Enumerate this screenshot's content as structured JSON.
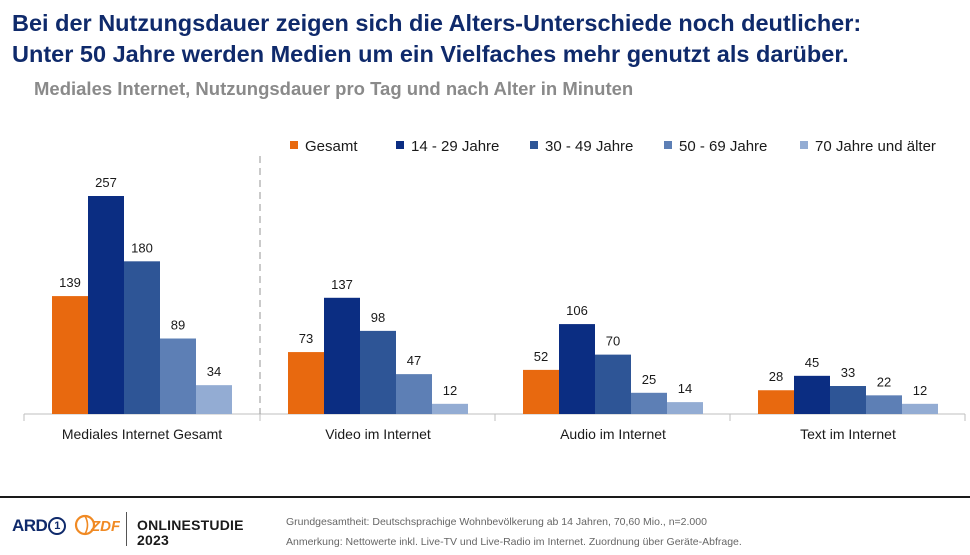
{
  "headline": {
    "line1": "Bei der Nutzungsdauer zeigen sich die Alters-Unterschiede noch deutlicher:",
    "line2": "Unter 50 Jahre werden Medien um ein Vielfaches mehr genutzt als darüber."
  },
  "subtitle": "Mediales Internet, Nutzungsdauer pro Tag und nach Alter in Minuten",
  "chart_data": {
    "type": "bar",
    "title": "Mediales Internet, Nutzungsdauer pro Tag und nach Alter in Minuten",
    "categories": [
      "Mediales Internet Gesamt",
      "Video im Internet",
      "Audio im Internet",
      "Text im Internet"
    ],
    "series": [
      {
        "name": "Gesamt",
        "color": "#e8690f",
        "values": [
          139,
          73,
          52,
          28
        ]
      },
      {
        "name": "14 - 29 Jahre",
        "color": "#0b2d82",
        "values": [
          257,
          137,
          106,
          45
        ]
      },
      {
        "name": "30 - 49 Jahre",
        "color": "#2e5596",
        "values": [
          180,
          98,
          70,
          33
        ]
      },
      {
        "name": "50 - 69 Jahre",
        "color": "#5d7fb5",
        "values": [
          89,
          47,
          25,
          22
        ]
      },
      {
        "name": "70 Jahre und älter",
        "color": "#93acd3",
        "values": [
          34,
          12,
          14,
          12
        ]
      }
    ],
    "ylim": [
      0,
      257
    ],
    "grid": false,
    "legend": "top-right",
    "data_labels": true
  },
  "footer": {
    "brand_ard": "ARD",
    "brand_ard_number": "1",
    "brand_zdf": "ZDF",
    "study_line1": "ONLINESTUDIE",
    "study_line2": "2023",
    "note1": "Grundgesamtheit: Deutschsprachige Wohnbevölkerung ab 14 Jahren, 70,60 Mio., n=2.000",
    "note2": "Anmerkung: Nettowerte inkl. Live-TV und Live-Radio im Internet. Zuordnung über Geräte-Abfrage."
  }
}
